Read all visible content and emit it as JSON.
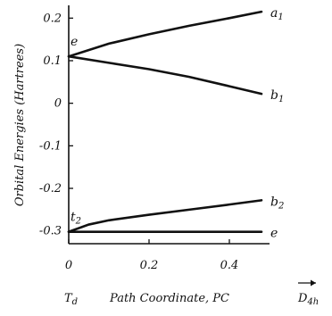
{
  "chart_data": {
    "type": "line",
    "xlabel": "Path Coordinate, PC",
    "ylabel": "Orbital Energies (Hartrees)",
    "xlim": [
      0,
      0.5
    ],
    "ylim": [
      -0.33,
      0.23
    ],
    "x_ticks": [
      0,
      0.2,
      0.4
    ],
    "x_tick_labels": [
      "0",
      "0.2",
      "0.4"
    ],
    "y_ticks": [
      0.2,
      0.1,
      0,
      -0.1,
      -0.2,
      -0.3
    ],
    "y_tick_labels": [
      "0.2",
      "0.1",
      "0",
      "-0.1",
      "-0.2",
      "-0.3"
    ],
    "x_endpoint_labels": {
      "start": "T",
      "start_sub": "d",
      "end": "D",
      "end_sub": "4h"
    },
    "grid": false,
    "series": [
      {
        "label": "a",
        "label_sub": "1",
        "x": [
          0,
          0.1,
          0.2,
          0.3,
          0.4,
          0.48
        ],
        "y": [
          0.11,
          0.14,
          0.162,
          0.182,
          0.2,
          0.215
        ]
      },
      {
        "label": "b",
        "label_sub": "1",
        "x": [
          0,
          0.1,
          0.2,
          0.3,
          0.4,
          0.48
        ],
        "y": [
          0.11,
          0.095,
          0.08,
          0.062,
          0.04,
          0.022
        ]
      },
      {
        "label": "b",
        "label_sub": "2",
        "x": [
          0,
          0.05,
          0.1,
          0.2,
          0.3,
          0.4,
          0.48
        ],
        "y": [
          -0.302,
          -0.285,
          -0.275,
          -0.262,
          -0.25,
          -0.238,
          -0.228
        ]
      },
      {
        "label": "e",
        "label_sub": "",
        "x": [
          0,
          0.1,
          0.2,
          0.3,
          0.4,
          0.48
        ],
        "y": [
          -0.302,
          -0.302,
          -0.302,
          -0.302,
          -0.302,
          -0.302
        ]
      }
    ],
    "annotations": [
      {
        "text": "e",
        "sub": "",
        "x": 0.0,
        "y": 0.11
      },
      {
        "text": "t",
        "sub": "2",
        "x": 0.0,
        "y": -0.302
      }
    ]
  }
}
